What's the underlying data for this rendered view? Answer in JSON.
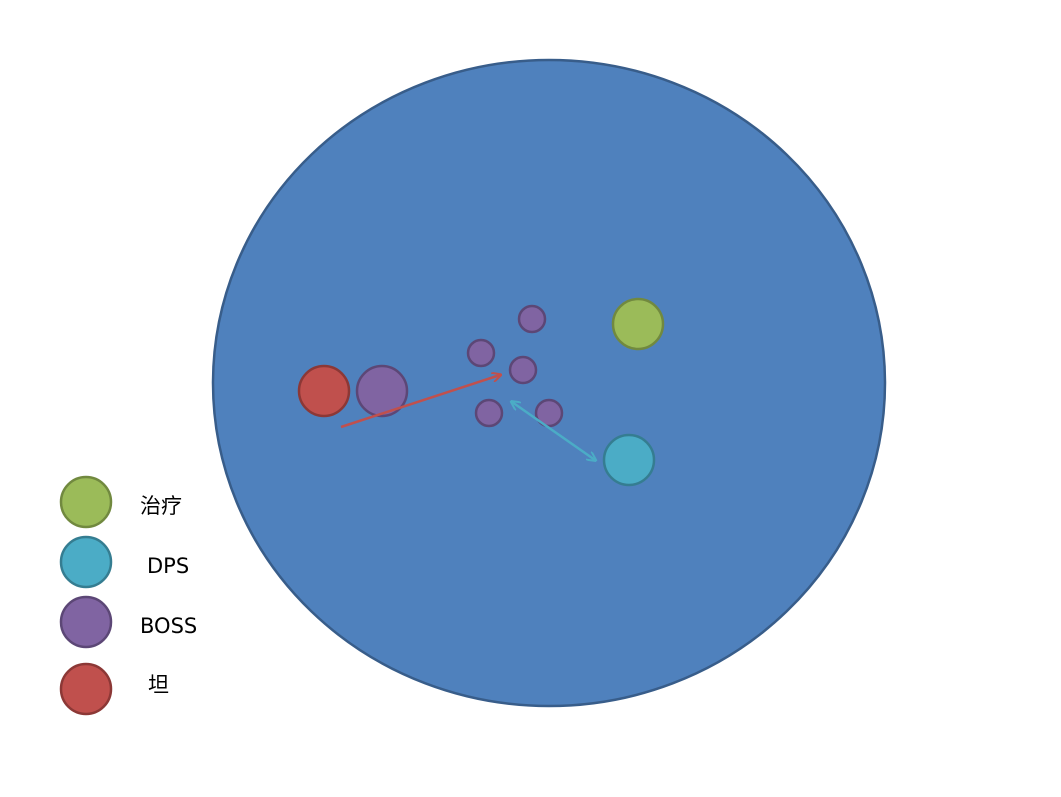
{
  "legend": {
    "items": [
      {
        "label": "治疗"
      },
      {
        "label": "DPS"
      },
      {
        "label": "BOSS"
      },
      {
        "label": "坦"
      }
    ]
  }
}
